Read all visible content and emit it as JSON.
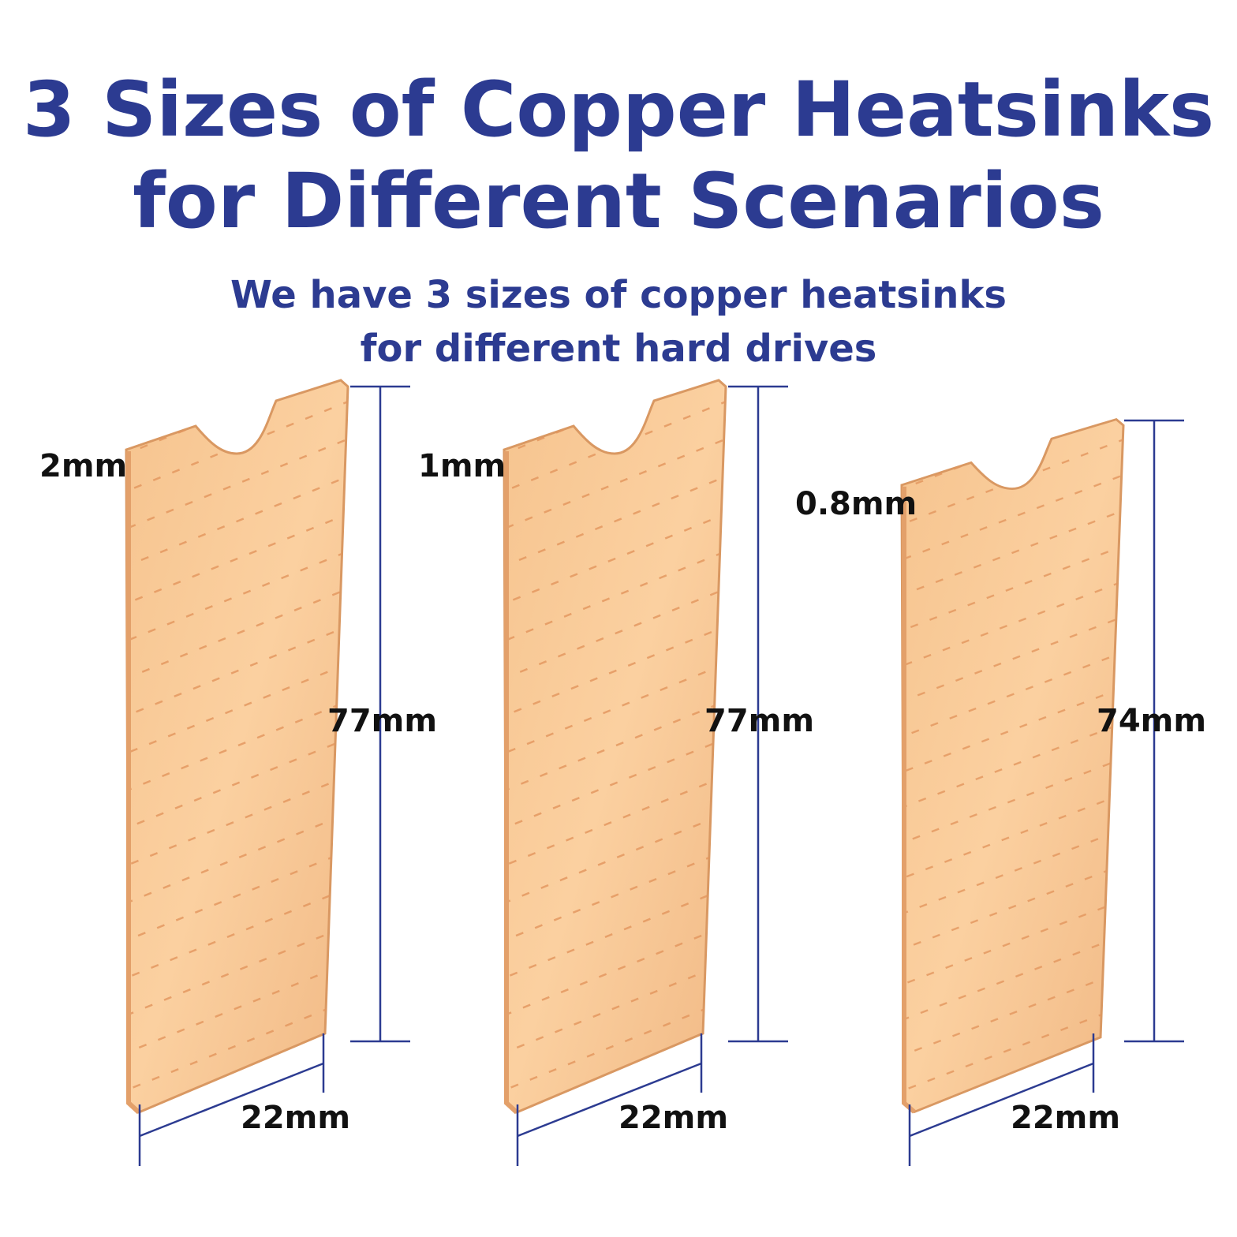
{
  "header": {
    "title_lines": [
      "3 Sizes of Copper Heatsinks",
      "for Different Scenarios"
    ],
    "subtitle_lines": [
      "We have 3 sizes of copper heatsinks",
      "for different hard drives"
    ]
  },
  "heatsinks": [
    {
      "thickness": "2mm",
      "length": "77mm",
      "width": "22mm"
    },
    {
      "thickness": "1mm",
      "length": "77mm",
      "width": "22mm"
    },
    {
      "thickness": "0.8mm",
      "length": "74mm",
      "width": "22mm"
    }
  ]
}
